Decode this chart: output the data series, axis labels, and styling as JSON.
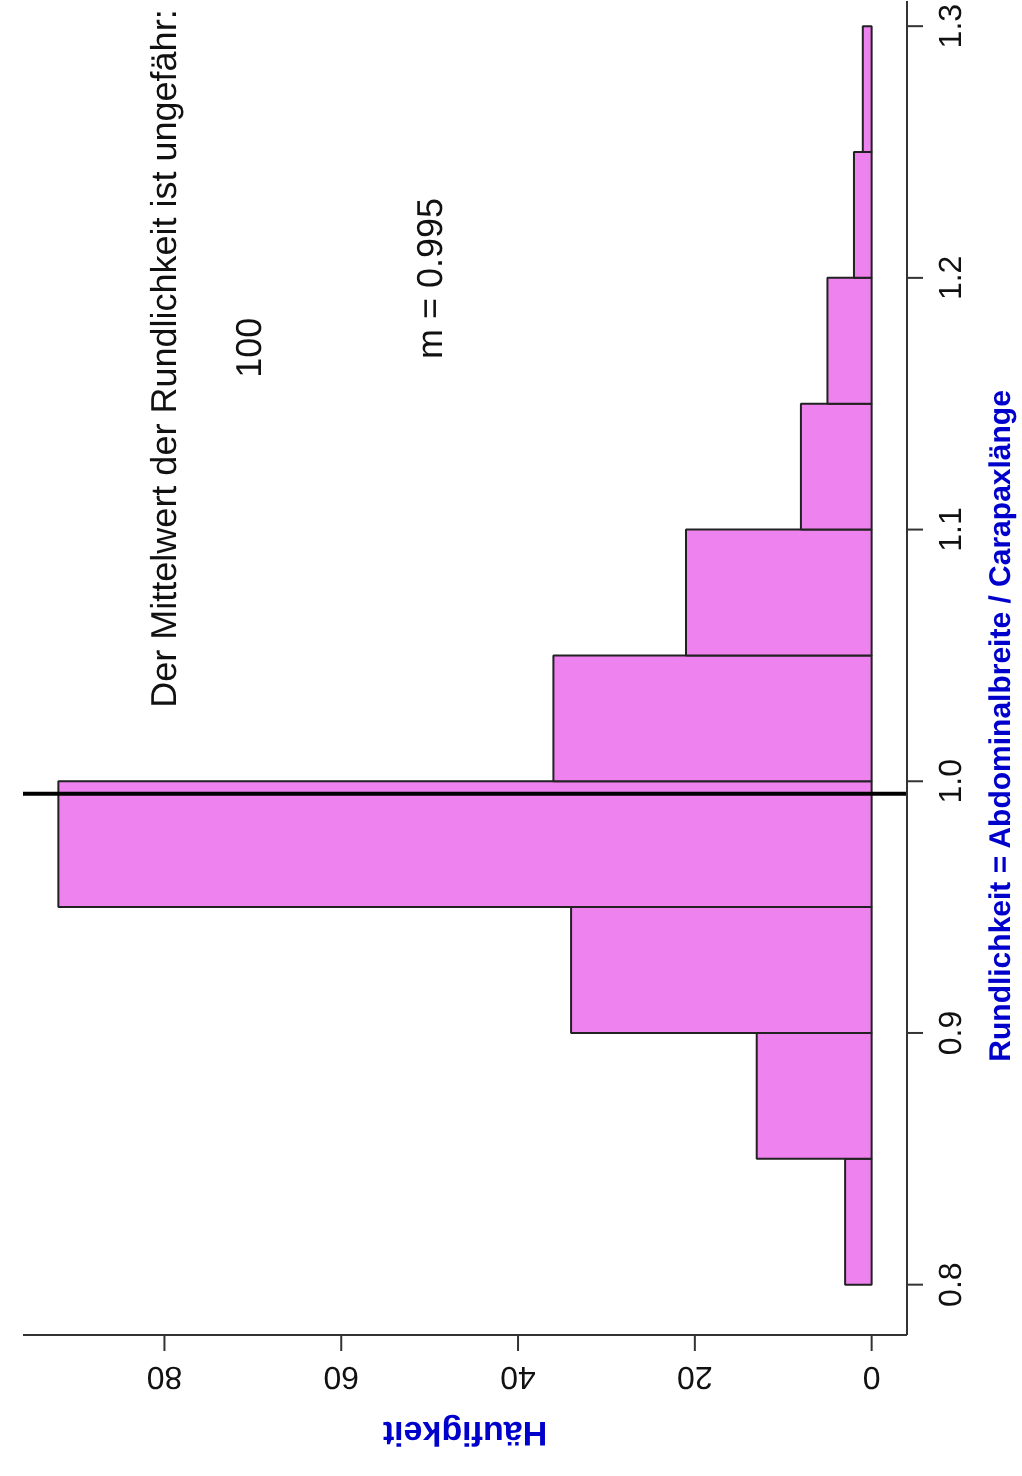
{
  "chart_data": {
    "type": "histogram",
    "orientation": "horizontal",
    "title": "Der Mittelwert der Rundlichkeit ist ungefähr:",
    "xlabel": "Häufigkeit",
    "ylabel": "Rundlichkeit = Abdominalbreite / Carapaxlänge",
    "annotations": [
      "100",
      "m = 0.995"
    ],
    "bins": [
      0.8,
      0.85,
      0.9,
      0.95,
      1.0,
      1.05,
      1.1,
      1.15,
      1.2,
      1.25,
      1.3
    ],
    "values": [
      3,
      13,
      34,
      92,
      36,
      21,
      8,
      5,
      2,
      1
    ],
    "color": "#ee82ee",
    "xlim": [
      96,
      -4
    ],
    "ylim": [
      0.78,
      1.31
    ],
    "xticks": [
      0,
      20,
      40,
      60,
      80
    ],
    "yticks": [
      0.8,
      0.9,
      {
        "value": 1,
        "label": "1.0"
      },
      1.1,
      1.2,
      1.3
    ],
    "ref_lines": [
      {
        "axis": "y",
        "value": 0.995,
        "color": "#000000"
      }
    ],
    "grid": false
  }
}
